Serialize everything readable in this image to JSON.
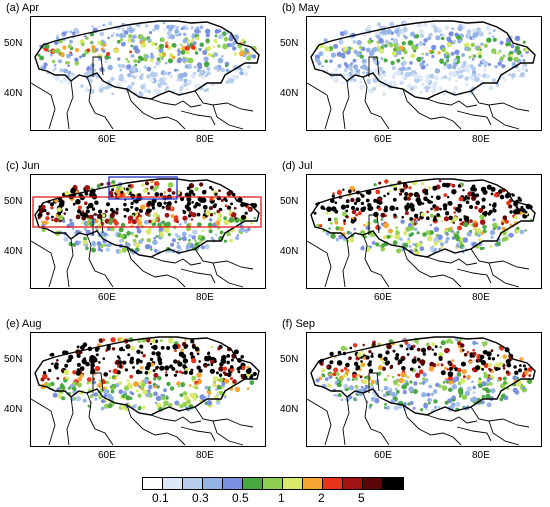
{
  "panels": [
    {
      "id": "a",
      "title": "(a) Apr",
      "intensity": 0.35,
      "north_bias": 0.8
    },
    {
      "id": "b",
      "title": "(b) May",
      "intensity": 0.3,
      "north_bias": 0.85
    },
    {
      "id": "c",
      "title": "(c) Jun",
      "intensity": 0.85,
      "north_bias": 0.5
    },
    {
      "id": "d",
      "title": "(d) Jul",
      "intensity": 0.95,
      "north_bias": 0.5
    },
    {
      "id": "e",
      "title": "(e) Aug",
      "intensity": 0.95,
      "north_bias": 0.45
    },
    {
      "id": "f",
      "title": "(f) Sep",
      "intensity": 0.75,
      "north_bias": 0.5
    }
  ],
  "axes": {
    "y_ticks": [
      "50N",
      "40N"
    ],
    "x_ticks": [
      "60E",
      "80E"
    ]
  },
  "colorbar": {
    "colors": [
      "#ffffff",
      "#dce8f7",
      "#b6cdee",
      "#93b2e6",
      "#7a8fe0",
      "#4aa843",
      "#8fd052",
      "#d9ea6a",
      "#f6a532",
      "#e8331b",
      "#a11212",
      "#5a0707",
      "#000000"
    ],
    "labels": [
      "0.1",
      "0.3",
      "0.5",
      "1",
      "2",
      "5"
    ]
  },
  "boxes": {
    "red": "#e01b1b",
    "blue": "#2235c8"
  }
}
